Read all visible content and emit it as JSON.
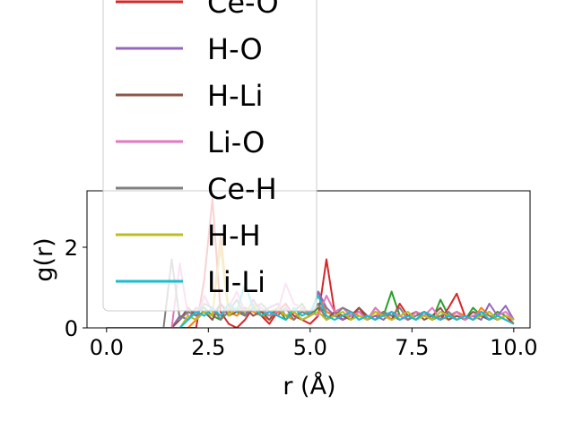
{
  "chart_data": {
    "type": "line",
    "xlabel": "r (Å)",
    "ylabel": "g(r)",
    "x": [
      0,
      0.2,
      0.4,
      0.6,
      0.8,
      1,
      1.2,
      1.4,
      1.6,
      1.8,
      2,
      2.2,
      2.4,
      2.6,
      2.8,
      3,
      3.2,
      3.4,
      3.6,
      3.8,
      4,
      4.2,
      4.4,
      4.6,
      4.8,
      5,
      5.2,
      5.4,
      5.6,
      5.8,
      6,
      6.2,
      6.4,
      6.6,
      6.8,
      7,
      7.2,
      7.4,
      7.6,
      7.8,
      8,
      8.2,
      8.4,
      8.6,
      8.8,
      9,
      9.2,
      9.4,
      9.6,
      9.8,
      10
    ],
    "xlim": [
      -0.48,
      10.4
    ],
    "ylim": [
      0,
      3.4
    ],
    "xticks": [
      {
        "value": 0,
        "label": "0.0"
      },
      {
        "value": 2.5,
        "label": "2.5"
      },
      {
        "value": 5,
        "label": "5.0"
      },
      {
        "value": 7.5,
        "label": "7.5"
      },
      {
        "value": 10,
        "label": "10.0"
      }
    ],
    "yticks": [
      0,
      2
    ],
    "series": [
      {
        "color": "#2ca02c",
        "values": [
          0,
          0,
          0,
          0,
          0,
          0,
          0,
          0,
          0,
          0.3,
          0.2,
          0.4,
          0.5,
          0.3,
          0.2,
          0.6,
          0.4,
          0.3,
          0.5,
          0.4,
          0.3,
          0.5,
          0.2,
          0.4,
          0.6,
          0.3,
          0.5,
          0.4,
          0.3,
          0.2,
          0.3,
          0.4,
          0.2,
          0.5,
          0.3,
          0.9,
          0.3,
          0.2,
          0.4,
          0.3,
          0.2,
          0.7,
          0.3,
          0.4,
          0.2,
          0.5,
          0.3,
          0.2,
          0.4,
          0.3,
          0.2
        ]
      },
      {
        "color": "#ff7f0e",
        "values": [
          0,
          0,
          0,
          0,
          0,
          0,
          0,
          0,
          0,
          0,
          0,
          0.2,
          0.4,
          0.3,
          2.3,
          0.4,
          0.3,
          0.5,
          0.4,
          0.3,
          0.2,
          0.4,
          0.3,
          0.2,
          0.5,
          0.3,
          0.9,
          0.4,
          0.3,
          0.2,
          0.4,
          0.3,
          0.2,
          0.3,
          0.4,
          0.2,
          0.3,
          0.2,
          0.4,
          0.3,
          0.2,
          0.3,
          0.2,
          0.4,
          0.3,
          0.2,
          0.5,
          0.3,
          0.2,
          0.3,
          0.1
        ]
      },
      {
        "name": "Ce-O",
        "color": "#d62728",
        "values": [
          0,
          0,
          0,
          0,
          0,
          0,
          0,
          0,
          0,
          0,
          0,
          0,
          1.2,
          3.2,
          0.4,
          0.1,
          0,
          0.2,
          0.5,
          0.3,
          0.1,
          0.4,
          0.6,
          0.3,
          0.2,
          0.1,
          0.3,
          1.7,
          0.4,
          0.2,
          0.3,
          0.5,
          0.2,
          0.4,
          0.3,
          0.2,
          0.6,
          0.3,
          0.2,
          0.4,
          0.3,
          0.2,
          0.5,
          0.85,
          0.3,
          0.2,
          0.3,
          0.4,
          0.2,
          0.3,
          0.1
        ]
      },
      {
        "name": "H-O",
        "color": "#9467bd",
        "values": [
          0,
          0,
          0,
          0,
          0,
          0,
          0,
          0,
          0,
          0.3,
          0.2,
          0.5,
          0.4,
          0.3,
          0.6,
          0.4,
          0.5,
          0.3,
          0.7,
          0.4,
          0.5,
          0.6,
          0.3,
          0.4,
          0.2,
          0.3,
          0.9,
          0.5,
          0.3,
          0.2,
          0.3,
          0.4,
          0.2,
          0.3,
          0.2,
          0.4,
          0.3,
          0.2,
          0.3,
          0.4,
          0.3,
          0.2,
          0.3,
          0.4,
          0.2,
          0.3,
          0.2,
          0.6,
          0.3,
          0.55,
          0.2
        ]
      },
      {
        "name": "H-Li",
        "color": "#8c564b",
        "values": [
          0,
          0,
          0,
          0,
          0,
          0,
          0,
          0,
          0,
          0.2,
          0.5,
          0.3,
          0.4,
          0.2,
          0.6,
          0.3,
          0.4,
          0.5,
          0.3,
          0.4,
          0.2,
          0.5,
          0.3,
          0.4,
          0.2,
          0.3,
          0.6,
          0.2,
          0.4,
          0.3,
          0.2,
          0.5,
          0.3,
          0.2,
          0.4,
          0.3,
          0.2,
          0.3,
          0.4,
          0.2,
          0.3,
          0.5,
          0.2,
          0.3,
          0.2,
          0.4,
          0.3,
          0.2,
          0.3,
          0.2,
          0.1
        ]
      },
      {
        "name": "Li-O",
        "color": "#e377c2",
        "values": [
          0,
          0,
          0,
          0,
          0,
          0,
          0,
          0,
          0,
          1.6,
          0.3,
          0.2,
          0.8,
          0.4,
          0.3,
          0.5,
          0.9,
          0.4,
          0.6,
          0.5,
          0.3,
          0.4,
          1.1,
          0.6,
          0.5,
          0.4,
          0.3,
          0.8,
          0.4,
          0.5,
          0.3,
          0.4,
          0.2,
          0.5,
          0.3,
          0.4,
          0.3,
          0.2,
          0.4,
          0.3,
          0.5,
          0.2,
          0.3,
          0.4,
          0.2,
          0.3,
          0.4,
          0.2,
          0.3,
          0.4,
          0.2
        ]
      },
      {
        "name": "Ce-H",
        "color": "#7f7f7f",
        "values": [
          0,
          0,
          0,
          0,
          0,
          0,
          0,
          0,
          1.7,
          0.2,
          0.4,
          0.3,
          0.6,
          0.5,
          0.2,
          0.4,
          0.7,
          0.3,
          0.5,
          0.6,
          0.4,
          0.3,
          0.5,
          0.2,
          0.4,
          0.3,
          0.6,
          0.2,
          0.3,
          0.5,
          0.4,
          0.2,
          0.3,
          0.2,
          0.4,
          0.3,
          0.5,
          0.2,
          0.3,
          0.4,
          0.2,
          0.3,
          0.4,
          0.2,
          0.3,
          0.2,
          0.4,
          0.3,
          0.2,
          0.3,
          0.2
        ]
      },
      {
        "name": "H-H",
        "color": "#bcbd22",
        "values": [
          0,
          0,
          0,
          0,
          0,
          0,
          0,
          0,
          0,
          0,
          0.3,
          0.2,
          0.4,
          0.3,
          2.0,
          0.3,
          0.5,
          0.4,
          0.6,
          0.3,
          0.4,
          0.5,
          0.3,
          0.4,
          0.2,
          0.3,
          0.4,
          0.2,
          0.3,
          0.4,
          0.2,
          0.3,
          0.2,
          0.4,
          0.3,
          0.2,
          0.3,
          0.4,
          0.2,
          0.3,
          0.2,
          0.4,
          0.3,
          0.2,
          0.3,
          0.2,
          0.3,
          0.4,
          0.2,
          0.3,
          0.2
        ]
      },
      {
        "name": "Li-Li",
        "color": "#17becf",
        "values": [
          0,
          0,
          0,
          0,
          0,
          0,
          0,
          0,
          0,
          0,
          0.2,
          0.4,
          0.3,
          0.5,
          0.3,
          0.6,
          0.4,
          1.1,
          0.5,
          0.3,
          0.4,
          0.3,
          0.2,
          0.5,
          0.3,
          0.4,
          0.8,
          0.3,
          0.2,
          0.3,
          0.4,
          0.2,
          0.3,
          0.2,
          0.3,
          0.4,
          0.2,
          0.3,
          0.2,
          0.4,
          0.3,
          0.2,
          0.3,
          0.2,
          0.3,
          0.2,
          0.4,
          0.2,
          0.3,
          0.2,
          0.1
        ]
      }
    ]
  }
}
